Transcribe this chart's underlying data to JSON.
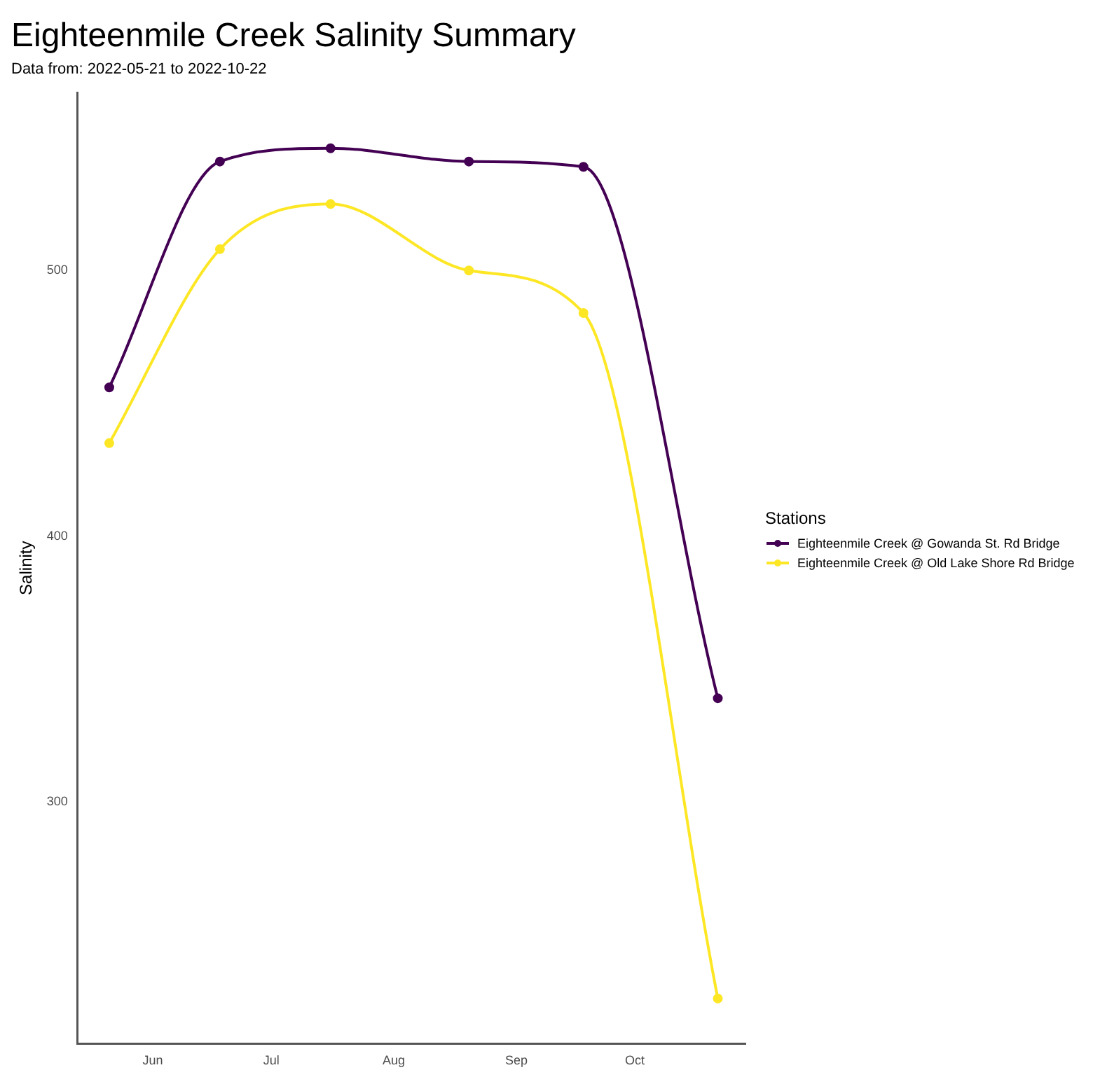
{
  "chart_data": {
    "type": "line",
    "title": "Eighteenmile Creek Salinity Summary",
    "subtitle": "Data from: 2022-05-21 to 2022-10-22",
    "ylabel": "Salinity",
    "legend_title": "Stations",
    "legend": "right",
    "grid": false,
    "marker": "circle",
    "line_style": "solid",
    "x": [
      "2022-05-21",
      "2022-06-18",
      "2022-07-16",
      "2022-08-20",
      "2022-09-18",
      "2022-10-22"
    ],
    "series": [
      {
        "name": "Eighteenmile Creek @ Gowanda St. Rd Bridge",
        "color": "#440154",
        "values": [
          456,
          541,
          546,
          541,
          539,
          339
        ]
      },
      {
        "name": "Eighteenmile Creek @ Old Lake Shore Rd Bridge",
        "color": "#fde725",
        "values": [
          435,
          508,
          525,
          500,
          484,
          226
        ]
      }
    ],
    "xlim": [
      "2022-05-13",
      "2022-10-29"
    ],
    "xticks": [
      {
        "value": "2022-06-01",
        "label": "Jun"
      },
      {
        "value": "2022-07-01",
        "label": "Jul"
      },
      {
        "value": "2022-08-01",
        "label": "Aug"
      },
      {
        "value": "2022-09-01",
        "label": "Sep"
      },
      {
        "value": "2022-10-01",
        "label": "Oct"
      }
    ],
    "ylim": [
      209,
      567
    ],
    "yticks": [
      300,
      400,
      500
    ]
  }
}
